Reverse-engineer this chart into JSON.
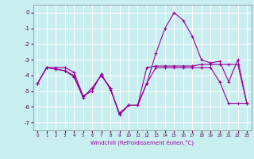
{
  "xlabel": "Windchill (Refroidissement éolien,°C)",
  "xlim": [
    -0.5,
    23.5
  ],
  "ylim": [
    -7.5,
    0.5
  ],
  "yticks": [
    0,
    -1,
    -2,
    -3,
    -4,
    -5,
    -6,
    -7
  ],
  "xticks": [
    0,
    1,
    2,
    3,
    4,
    5,
    6,
    7,
    8,
    9,
    10,
    11,
    12,
    13,
    14,
    15,
    16,
    17,
    18,
    19,
    20,
    21,
    22,
    23
  ],
  "bg_color": "#c8eef0",
  "grid_color": "#ffffff",
  "line_color": "#990099",
  "lines": [
    {
      "x": [
        0,
        1,
        2,
        3,
        4,
        5,
        6,
        7,
        8,
        9,
        10,
        11,
        12,
        13,
        14,
        15,
        16,
        17,
        18,
        19,
        20,
        21,
        22,
        23
      ],
      "y": [
        -4.5,
        -3.5,
        -3.5,
        -3.5,
        -3.8,
        -5.3,
        -5.0,
        -3.9,
        -4.9,
        -6.4,
        -5.9,
        -5.9,
        -4.5,
        -2.6,
        -1.0,
        0.0,
        -0.5,
        -1.5,
        -3.0,
        -3.2,
        -3.1,
        -4.4,
        -3.0,
        -5.8
      ]
    },
    {
      "x": [
        0,
        1,
        2,
        3,
        4,
        5,
        6,
        7,
        8,
        9,
        10,
        11,
        12,
        13,
        14,
        15,
        16,
        17,
        18,
        19,
        20,
        21,
        22,
        23
      ],
      "y": [
        -4.5,
        -3.5,
        -3.6,
        -3.7,
        -4.0,
        -5.4,
        -4.8,
        -4.0,
        -4.8,
        -6.5,
        -5.9,
        -5.9,
        -3.5,
        -3.4,
        -3.4,
        -3.4,
        -3.4,
        -3.4,
        -3.3,
        -3.3,
        -3.3,
        -3.3,
        -3.3,
        -5.8
      ]
    },
    {
      "x": [
        0,
        1,
        2,
        3,
        4,
        5,
        6,
        7,
        8,
        9,
        10,
        11,
        12,
        13,
        14,
        15,
        16,
        17,
        18,
        19,
        20,
        21,
        22,
        23
      ],
      "y": [
        -4.5,
        -3.5,
        -3.6,
        -3.7,
        -4.1,
        -5.4,
        -4.8,
        -4.0,
        -4.8,
        -6.5,
        -5.9,
        -5.9,
        -4.5,
        -3.5,
        -3.5,
        -3.5,
        -3.5,
        -3.5,
        -3.5,
        -3.5,
        -4.4,
        -5.8,
        -5.8,
        -5.8
      ]
    }
  ]
}
